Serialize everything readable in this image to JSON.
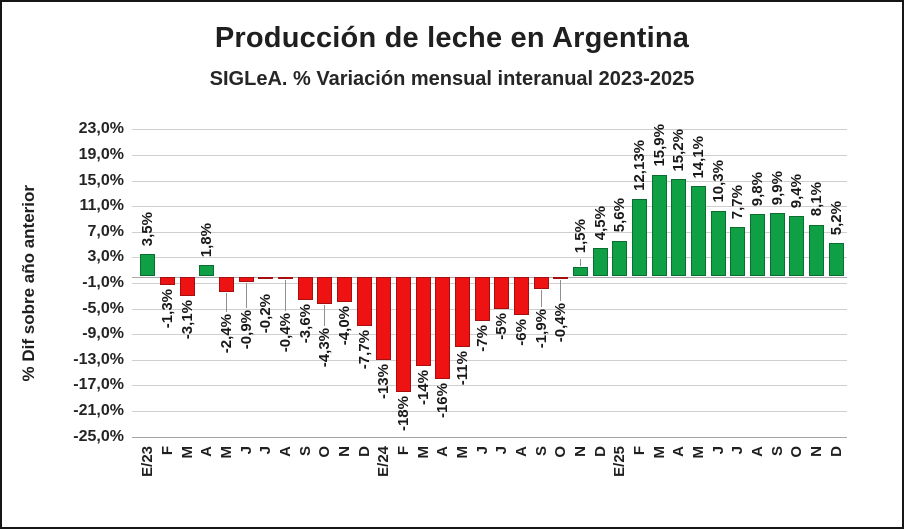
{
  "header": {
    "title": "Producción de leche en Argentina",
    "subtitle": "SIGLeA. % Variación mensual interanual 2023-2025"
  },
  "chart_data": {
    "type": "bar",
    "title": "Producción de leche en Argentina",
    "subtitle": "SIGLeA. % Variación mensual interanual 2023-2025",
    "ylabel": "% Dif sobre año anterior",
    "xlabel": "",
    "ylim": [
      -25,
      23
    ],
    "grid": true,
    "legend": "none",
    "yticks": [
      23,
      19,
      15,
      11,
      7,
      3,
      -1,
      -5,
      -9,
      -13,
      -17,
      -21,
      -25
    ],
    "ytick_labels": [
      "23,0%",
      "19,0%",
      "15,0%",
      "11,0%",
      "7,0%",
      "3,0%",
      "-1,0%",
      "-5,0%",
      "-9,0%",
      "-13,0%",
      "-17,0%",
      "-21,0%",
      "-25,0%"
    ],
    "categories": [
      "E/23",
      "F",
      "M",
      "A",
      "M",
      "J",
      "J",
      "A",
      "S",
      "O",
      "N",
      "D",
      "E/24",
      "F",
      "M",
      "A",
      "M",
      "J",
      "J",
      "A",
      "S",
      "O",
      "N",
      "D",
      "E/25",
      "F",
      "M",
      "A",
      "M",
      "J",
      "J",
      "A",
      "S",
      "O",
      "N",
      "D"
    ],
    "values": [
      3.5,
      -1.3,
      -3.1,
      1.8,
      -2.4,
      -0.9,
      -0.2,
      -0.4,
      -3.6,
      -4.3,
      -4.0,
      -7.7,
      -13,
      -18,
      -14,
      -16,
      -11,
      -7,
      -5,
      -6,
      -1.9,
      -0.4,
      1.5,
      4.5,
      5.6,
      12.13,
      15.9,
      15.2,
      14.1,
      10.3,
      7.7,
      9.8,
      9.9,
      9.4,
      8.1,
      5.2
    ],
    "value_labels": [
      "3,5%",
      "-1,3%",
      "-3,1%",
      "1,8%",
      "-2,4%",
      "-0,9%",
      "-0,2%",
      "-0,4%",
      "-3,6%",
      "-4,3%",
      "-4,0%",
      "-7,7%",
      "-13%",
      "-18%",
      "-14%",
      "-16%",
      "-11%",
      "-7%",
      "-5%",
      "-6%",
      "-1,9%",
      "-0,4%",
      "1,5%",
      "4,5%",
      "5,6%",
      "12,13%",
      "15,9%",
      "15,2%",
      "14,1%",
      "10,3%",
      "7,7%",
      "9,8%",
      "9,9%",
      "9,4%",
      "8,1%",
      "5,2%"
    ],
    "leader_lines": [
      {
        "index": 4,
        "gap": 22,
        "line": true
      },
      {
        "index": 5,
        "gap": 28,
        "line": true
      },
      {
        "index": 6,
        "gap": 16,
        "line": false
      },
      {
        "index": 7,
        "gap": 34,
        "line": true
      },
      {
        "index": 9,
        "gap": 24,
        "line": true
      },
      {
        "index": 20,
        "gap": 20,
        "line": true
      },
      {
        "index": 21,
        "gap": 24,
        "line": true
      },
      {
        "index": 22,
        "gap": 10,
        "line": true
      }
    ],
    "colors": {
      "positive_fill": "#0f9f45",
      "positive_border": "#0b6d30",
      "negative_fill": "#ee1212",
      "negative_border": "#a60f0f",
      "gridline": "#cfcfcf",
      "zero_line": "#ababab",
      "bottom_line": "#a4a4a4",
      "text": "#1f1f1f"
    }
  }
}
